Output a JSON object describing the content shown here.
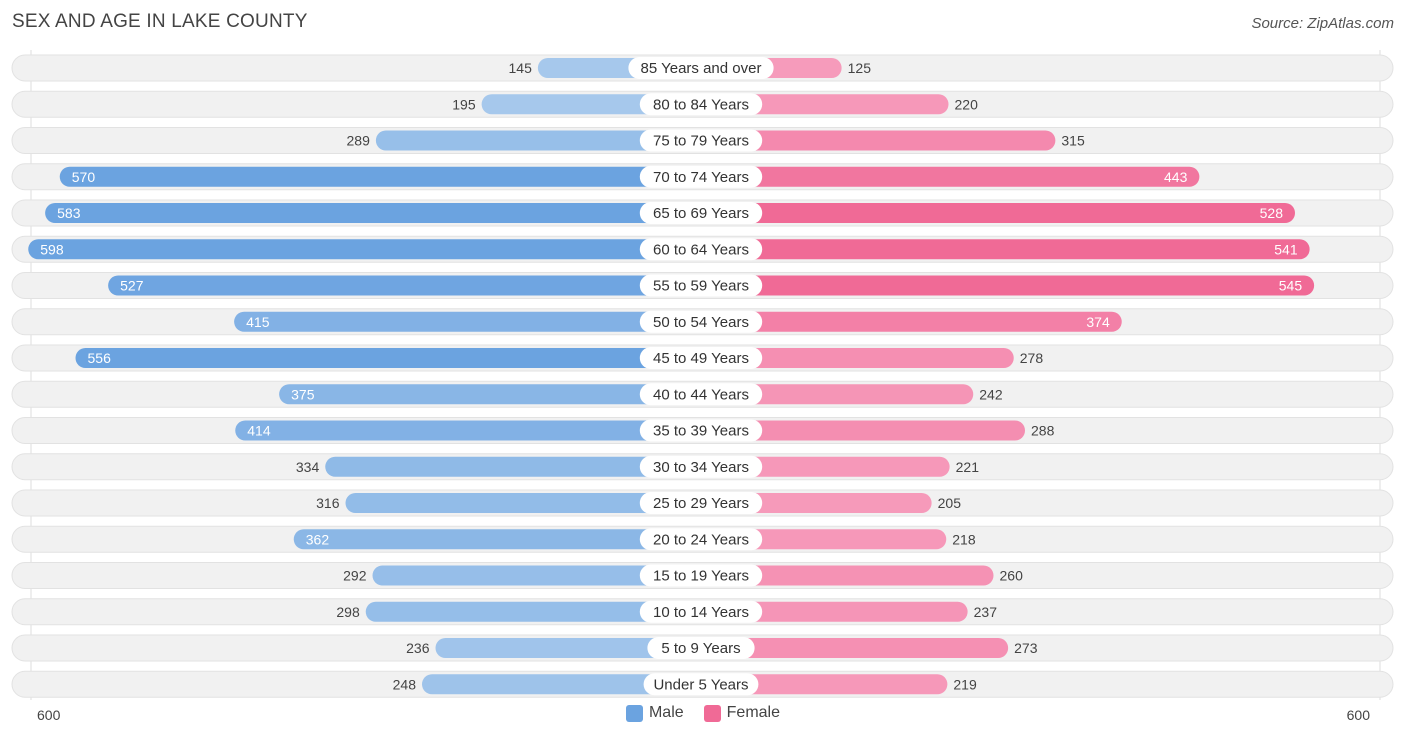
{
  "header": {
    "title": "SEX AND AGE IN LAKE COUNTY",
    "source": "Source: ZipAtlas.com"
  },
  "legend": {
    "male_label": "Male",
    "female_label": "Female"
  },
  "axis": {
    "left_label": "600",
    "right_label": "600"
  },
  "chart_data": {
    "type": "bar",
    "orientation": "horizontal-diverging",
    "title": "SEX AND AGE IN LAKE COUNTY",
    "categories": [
      "85 Years and over",
      "80 to 84 Years",
      "75 to 79 Years",
      "70 to 74 Years",
      "65 to 69 Years",
      "60 to 64 Years",
      "55 to 59 Years",
      "50 to 54 Years",
      "45 to 49 Years",
      "40 to 44 Years",
      "35 to 39 Years",
      "30 to 34 Years",
      "25 to 29 Years",
      "20 to 24 Years",
      "15 to 19 Years",
      "10 to 14 Years",
      "5 to 9 Years",
      "Under 5 Years"
    ],
    "series": [
      {
        "name": "Male",
        "color": "#6ba3e0",
        "light_color": "#a6c8ec",
        "values": [
          145,
          195,
          289,
          570,
          583,
          598,
          527,
          415,
          556,
          375,
          414,
          334,
          316,
          362,
          292,
          298,
          236,
          248
        ]
      },
      {
        "name": "Female",
        "color": "#f06a96",
        "light_color": "#f69bbb",
        "values": [
          125,
          220,
          315,
          443,
          528,
          541,
          545,
          374,
          278,
          242,
          288,
          221,
          205,
          218,
          260,
          237,
          273,
          219
        ]
      }
    ],
    "xlim": [
      0,
      600
    ],
    "legend_position": "bottom-center"
  }
}
